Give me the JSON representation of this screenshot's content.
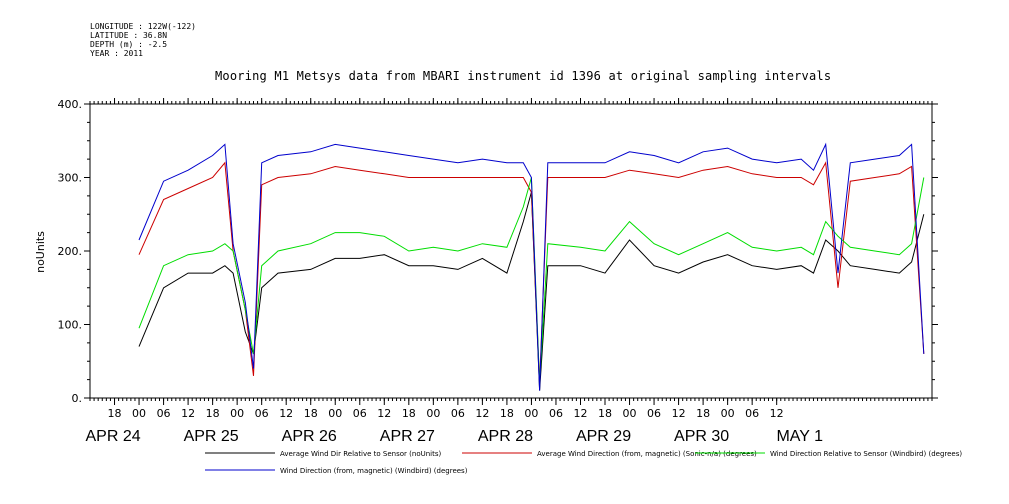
{
  "meta": {
    "longitude": "LONGITUDE : 122W(-122)",
    "latitude": "LATITUDE : 36.8N",
    "depth": "DEPTH (m) : -2.5",
    "year": "YEAR : 2011"
  },
  "chart_data": {
    "type": "line",
    "title": "Mooring M1 Metsys data from MBARI instrument id 1396 at original sampling intervals",
    "ylabel": "noUnits",
    "xlabel": "",
    "ylim": [
      0,
      400
    ],
    "yticks": [
      0,
      100,
      200,
      300,
      400
    ],
    "ytick_labels": [
      "0.",
      "100.",
      "200.",
      "300.",
      "400."
    ],
    "xlim_hours": [
      -10,
      14.5
    ],
    "hour_tick_labels": [
      "18",
      "00",
      "06",
      "12",
      "18",
      "00",
      "06",
      "12",
      "18",
      "00",
      "06",
      "12",
      "18",
      "00",
      "06",
      "12",
      "18",
      "00",
      "06",
      "12",
      "18",
      "00",
      "06",
      "12",
      "18",
      "00",
      "06",
      "12"
    ],
    "day_labels": [
      "APR 24",
      "APR 25",
      "APR 26",
      "APR 27",
      "APR 28",
      "APR 29",
      "APR 30",
      "MAY  1"
    ],
    "grid": false,
    "legend_position": "bottom",
    "series": [
      {
        "name": "Average Wind Dir Relative to Sensor (noUnits)",
        "color": "#000000",
        "x": [
          "Apr 23 12:00",
          "Apr 23 18:00",
          "Apr 24 00:00",
          "Apr 24 06:00",
          "Apr 24 09:00",
          "Apr 24 11:00",
          "Apr 24 14:00",
          "Apr 24 16:00",
          "Apr 24 18:00",
          "Apr 24 22:00",
          "Apr 25 06:00",
          "Apr 25 12:00",
          "Apr 25 18:00",
          "Apr 26 00:00",
          "Apr 26 06:00",
          "Apr 26 12:00",
          "Apr 26 18:00",
          "Apr 27 00:00",
          "Apr 27 06:00",
          "Apr 27 10:00",
          "Apr 27 12:00",
          "Apr 27 14:00",
          "Apr 27 16:00",
          "Apr 28 00:00",
          "Apr 28 06:00",
          "Apr 28 12:00",
          "Apr 28 18:00",
          "Apr 29 00:00",
          "Apr 29 06:00",
          "Apr 29 12:00",
          "Apr 29 18:00",
          "Apr 30 00:00",
          "Apr 30 06:00",
          "Apr 30 09:00",
          "Apr 30 12:00",
          "Apr 30 15:00",
          "Apr 30 18:00",
          "May 1 00:00",
          "May 1 06:00",
          "May 1 09:00",
          "May 1 12:00"
        ],
        "values": [
          70,
          150,
          170,
          170,
          180,
          170,
          90,
          60,
          150,
          170,
          175,
          190,
          190,
          195,
          180,
          180,
          175,
          190,
          170,
          240,
          280,
          10,
          180,
          180,
          170,
          215,
          180,
          170,
          185,
          195,
          180,
          175,
          180,
          170,
          215,
          200,
          180,
          175,
          170,
          185,
          250
        ]
      },
      {
        "name": "Average Wind Direction (from, magnetic) (Sonic-n/a) (degrees)",
        "color": "#cc0000",
        "x": [
          "Apr 23 12:00",
          "Apr 23 18:00",
          "Apr 24 00:00",
          "Apr 24 06:00",
          "Apr 24 09:00",
          "Apr 24 11:00",
          "Apr 24 14:00",
          "Apr 24 16:00",
          "Apr 24 18:00",
          "Apr 24 22:00",
          "Apr 25 06:00",
          "Apr 25 12:00",
          "Apr 25 18:00",
          "Apr 26 00:00",
          "Apr 26 06:00",
          "Apr 26 12:00",
          "Apr 26 18:00",
          "Apr 27 00:00",
          "Apr 27 06:00",
          "Apr 27 10:00",
          "Apr 27 12:00",
          "Apr 27 14:00",
          "Apr 27 16:00",
          "Apr 28 00:00",
          "Apr 28 06:00",
          "Apr 28 12:00",
          "Apr 28 18:00",
          "Apr 29 00:00",
          "Apr 29 06:00",
          "Apr 29 12:00",
          "Apr 29 18:00",
          "Apr 30 00:00",
          "Apr 30 06:00",
          "Apr 30 09:00",
          "Apr 30 12:00",
          "Apr 30 15:00",
          "Apr 30 18:00",
          "May 1 00:00",
          "May 1 06:00",
          "May 1 09:00",
          "May 1 12:00"
        ],
        "values": [
          195,
          270,
          285,
          300,
          320,
          200,
          120,
          30,
          290,
          300,
          305,
          315,
          310,
          305,
          300,
          300,
          300,
          300,
          300,
          300,
          280,
          20,
          300,
          300,
          300,
          310,
          305,
          300,
          310,
          315,
          305,
          300,
          300,
          290,
          320,
          150,
          295,
          300,
          305,
          315,
          60
        ]
      },
      {
        "name": "Wind Direction Relative to Sensor (Windbird) (degrees)",
        "color": "#00dd00",
        "x": [
          "Apr 23 12:00",
          "Apr 23 18:00",
          "Apr 24 00:00",
          "Apr 24 06:00",
          "Apr 24 09:00",
          "Apr 24 11:00",
          "Apr 24 14:00",
          "Apr 24 16:00",
          "Apr 24 18:00",
          "Apr 24 22:00",
          "Apr 25 06:00",
          "Apr 25 12:00",
          "Apr 25 18:00",
          "Apr 26 00:00",
          "Apr 26 06:00",
          "Apr 26 12:00",
          "Apr 26 18:00",
          "Apr 27 00:00",
          "Apr 27 06:00",
          "Apr 27 10:00",
          "Apr 27 12:00",
          "Apr 27 14:00",
          "Apr 27 16:00",
          "Apr 28 00:00",
          "Apr 28 06:00",
          "Apr 28 12:00",
          "Apr 28 18:00",
          "Apr 29 00:00",
          "Apr 29 06:00",
          "Apr 29 12:00",
          "Apr 29 18:00",
          "Apr 30 00:00",
          "Apr 30 06:00",
          "Apr 30 09:00",
          "Apr 30 12:00",
          "Apr 30 15:00",
          "Apr 30 18:00",
          "May 1 00:00",
          "May 1 06:00",
          "May 1 09:00",
          "May 1 12:00"
        ],
        "values": [
          95,
          180,
          195,
          200,
          210,
          200,
          120,
          60,
          180,
          200,
          210,
          225,
          225,
          220,
          200,
          205,
          200,
          210,
          205,
          260,
          300,
          20,
          210,
          205,
          200,
          240,
          210,
          195,
          210,
          225,
          205,
          200,
          205,
          195,
          240,
          220,
          205,
          200,
          195,
          210,
          300
        ]
      },
      {
        "name": "Wind Direction (from, magnetic) (Windbird) (degrees)",
        "color": "#0000cc",
        "x": [
          "Apr 23 12:00",
          "Apr 23 18:00",
          "Apr 24 00:00",
          "Apr 24 06:00",
          "Apr 24 09:00",
          "Apr 24 11:00",
          "Apr 24 14:00",
          "Apr 24 16:00",
          "Apr 24 18:00",
          "Apr 24 22:00",
          "Apr 25 06:00",
          "Apr 25 12:00",
          "Apr 25 18:00",
          "Apr 26 00:00",
          "Apr 26 06:00",
          "Apr 26 12:00",
          "Apr 26 18:00",
          "Apr 27 00:00",
          "Apr 27 06:00",
          "Apr 27 10:00",
          "Apr 27 12:00",
          "Apr 27 14:00",
          "Apr 27 16:00",
          "Apr 28 00:00",
          "Apr 28 06:00",
          "Apr 28 12:00",
          "Apr 28 18:00",
          "Apr 29 00:00",
          "Apr 29 06:00",
          "Apr 29 12:00",
          "Apr 29 18:00",
          "Apr 30 00:00",
          "Apr 30 06:00",
          "Apr 30 09:00",
          "Apr 30 12:00",
          "Apr 30 15:00",
          "Apr 30 18:00",
          "May 1 00:00",
          "May 1 06:00",
          "May 1 09:00",
          "May 1 12:00"
        ],
        "values": [
          215,
          295,
          310,
          330,
          345,
          210,
          130,
          40,
          320,
          330,
          335,
          345,
          340,
          335,
          330,
          325,
          320,
          325,
          320,
          320,
          300,
          10,
          320,
          320,
          320,
          335,
          330,
          320,
          335,
          340,
          325,
          320,
          325,
          310,
          345,
          170,
          320,
          325,
          330,
          345,
          60
        ]
      }
    ]
  }
}
